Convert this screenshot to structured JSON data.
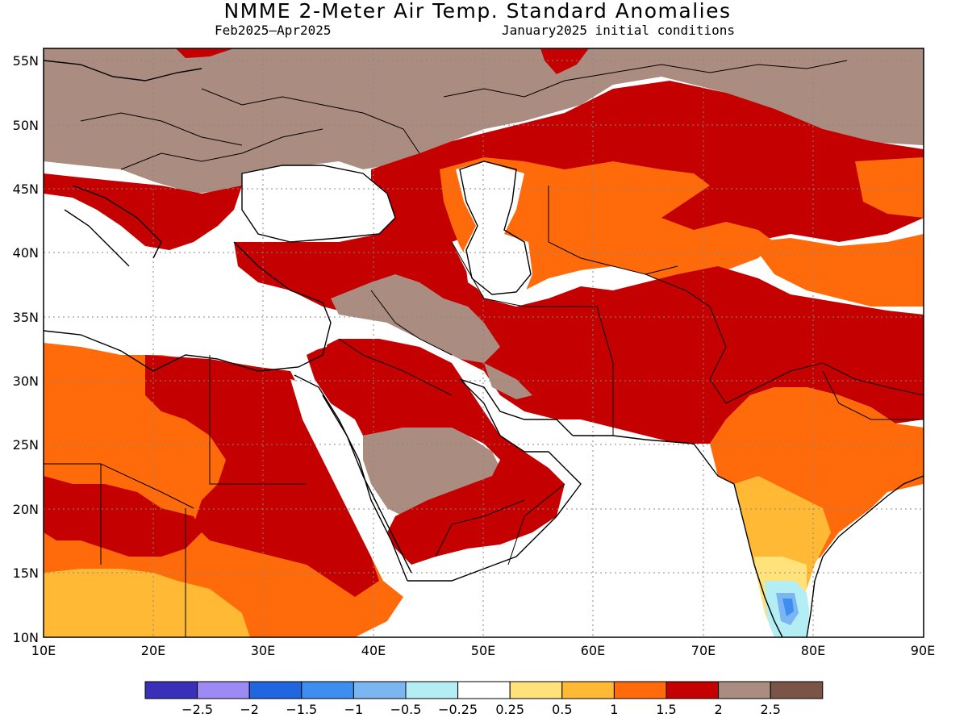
{
  "title": "NMME 2-Meter Air Temp. Standard Anomalies",
  "subtitle_left": "Feb2025–Apr2025",
  "subtitle_right": "January2025 initial conditions",
  "map": {
    "lon_range": [
      10,
      90
    ],
    "lat_range": [
      10,
      56
    ],
    "x_ticks": [
      "10E",
      "20E",
      "30E",
      "40E",
      "50E",
      "60E",
      "70E",
      "80E",
      "90E"
    ],
    "y_ticks": [
      "10N",
      "15N",
      "20N",
      "25N",
      "30N",
      "35N",
      "40N",
      "45N",
      "50N",
      "55N"
    ],
    "grid_dotted": true
  },
  "colorbar": {
    "colors": [
      "#3a2fb8",
      "#9e8af5",
      "#1f66e0",
      "#3d8ef0",
      "#7cb6f2",
      "#b4eef5",
      "#ffffff",
      "#ffe27a",
      "#ffb934",
      "#ff6a0a",
      "#c40000",
      "#ab8c80",
      "#7a5446"
    ],
    "labels": [
      "−2.5",
      "−2",
      "−1.5",
      "−1",
      "−0.5",
      "−0.25",
      "0.25",
      "0.5",
      "1",
      "1.5",
      "2",
      "2.5"
    ]
  },
  "regions": [
    {
      "name": "northwest-europe-brown",
      "color": "#ab8c80"
    },
    {
      "name": "north-central-brown",
      "color": "#ab8c80"
    },
    {
      "name": "central-asia-darkred",
      "color": "#c40000"
    },
    {
      "name": "iran-darkred",
      "color": "#c40000"
    },
    {
      "name": "north-africa-orange",
      "color": "#ff6a0a"
    },
    {
      "name": "sahel-yellow",
      "color": "#ffb934"
    },
    {
      "name": "arabia-brown",
      "color": "#ab8c80"
    },
    {
      "name": "india-orange",
      "color": "#ff6a0a"
    },
    {
      "name": "south-india-blue",
      "color": "#7cb6f2"
    }
  ]
}
